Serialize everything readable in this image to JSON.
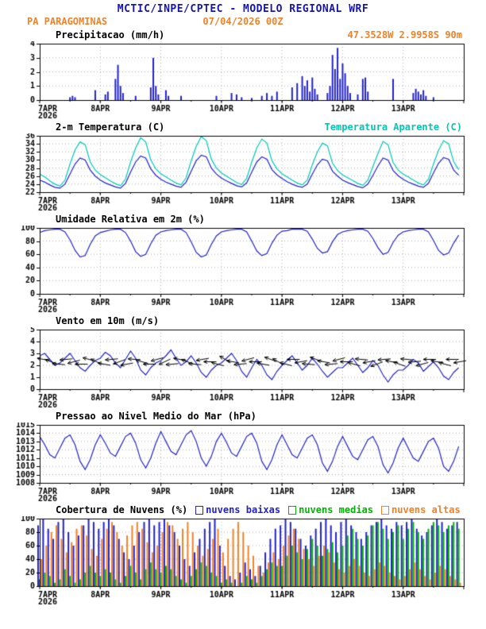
{
  "header": {
    "title": "MCTIC/INPE/CPTEC - MODELO REGIONAL WRF",
    "station": "PA PARAGOMINAS",
    "run": "07/04/2026 00Z",
    "coords": "47.3528W 2.9958S 90m"
  },
  "colors": {
    "header_blue": "#1414b4",
    "orange": "#f08228",
    "blue": "#2323c8",
    "cyan": "#00c8b4",
    "green": "#00b400",
    "grid": "#b0b0b0",
    "axis": "#000000"
  },
  "xaxis": {
    "labels": [
      "7APR",
      "8APR",
      "9APR",
      "10APR",
      "11APR",
      "12APR",
      "13APR"
    ],
    "year": "2026",
    "total_hours": 168
  },
  "chart_data": [
    {
      "id": "precip",
      "type": "bar",
      "title": "Precipitacao (mm/h)",
      "ylim": [
        0,
        4
      ],
      "yticks": [
        0,
        1,
        2,
        3,
        4
      ],
      "step_hours": 1,
      "color": "blue",
      "values": [
        0,
        0,
        0,
        0,
        0,
        0,
        0,
        0,
        0,
        0,
        0,
        0,
        0.2,
        0.3,
        0.2,
        0,
        0,
        0,
        0,
        0,
        0,
        0,
        0.7,
        0,
        0,
        0,
        0.4,
        0.6,
        0,
        0,
        1.5,
        2.5,
        1.0,
        0.5,
        0,
        0,
        0,
        0,
        0.3,
        0,
        0,
        0,
        0,
        0,
        0.9,
        3.0,
        1.0,
        0.4,
        0,
        0,
        0.7,
        0.3,
        0,
        0,
        0,
        0,
        0.3,
        0,
        0,
        0,
        0,
        0,
        0,
        0,
        0,
        0,
        0,
        0,
        0,
        0,
        0.3,
        0,
        0,
        0,
        0,
        0,
        0.5,
        0,
        0.4,
        0,
        0.2,
        0,
        0,
        0,
        0.15,
        0,
        0,
        0,
        0.3,
        0,
        0.5,
        0,
        0.3,
        0,
        0.6,
        0,
        0,
        0,
        0,
        0,
        0.9,
        0,
        1.2,
        0,
        1.7,
        1.0,
        1.4,
        0.6,
        1.6,
        0.8,
        0.4,
        0,
        0,
        0,
        0.5,
        1.0,
        3.2,
        2.2,
        3.7,
        1.5,
        2.6,
        1.9,
        1.0,
        0.5,
        0,
        0,
        0.4,
        0,
        1.5,
        1.6,
        0.6,
        0,
        0,
        0,
        0,
        0,
        0,
        0,
        0,
        0,
        1.5,
        0,
        0,
        0,
        0,
        0,
        0,
        0,
        0.5,
        0.8,
        0.6,
        0.4,
        0.7,
        0.3,
        0,
        0,
        0.2,
        0,
        0,
        0,
        0,
        0,
        0,
        0,
        0,
        0,
        0,
        0
      ]
    },
    {
      "id": "temp",
      "type": "line",
      "title": "2-m Temperatura (C)",
      "right_label": "Temperatura Aparente (C)",
      "ylim": [
        22,
        36
      ],
      "yticks": [
        22,
        24,
        26,
        28,
        30,
        32,
        34,
        36
      ],
      "step_hours": 2,
      "series": [
        {
          "name": "2-m Temperatura (C)",
          "color": "blue",
          "values": [
            25,
            24.5,
            23.8,
            23.2,
            23,
            24,
            26.5,
            29,
            30.5,
            30,
            27.5,
            26,
            25,
            24.3,
            23.8,
            23.3,
            23,
            24.2,
            27,
            29.5,
            31,
            30.5,
            27.8,
            26.2,
            25.2,
            24.5,
            24,
            23.5,
            23.2,
            24.5,
            27.2,
            29.8,
            31.2,
            30.8,
            28,
            26.5,
            25.5,
            24.8,
            24.2,
            23.6,
            23.3,
            24.3,
            27,
            29.5,
            30.8,
            30.2,
            27.6,
            26.3,
            25.4,
            24.6,
            24,
            23.5,
            23.2,
            24,
            26.5,
            28.8,
            30.2,
            29.8,
            27.2,
            26,
            25,
            24.4,
            23.9,
            23.4,
            23.1,
            24,
            26.2,
            28.5,
            30.5,
            30,
            27.4,
            26.1,
            25.2,
            24.5,
            24,
            23.5,
            23.2,
            24.2,
            26.8,
            29.2,
            30.6,
            30.2,
            27.5,
            26.2
          ]
        },
        {
          "name": "Temperatura Aparente (C)",
          "color": "cyan",
          "values": [
            26.5,
            25.8,
            24.8,
            24,
            23.5,
            25,
            29,
            32.5,
            34.5,
            33.8,
            29.5,
            27.5,
            26.4,
            25.6,
            24.8,
            24.1,
            23.6,
            25.3,
            29.5,
            33,
            35.5,
            34.5,
            30,
            27.8,
            26.6,
            25.8,
            25,
            24.3,
            23.8,
            25.6,
            29.8,
            33.4,
            35.8,
            34.8,
            30.2,
            28,
            26.8,
            26,
            25.2,
            24.4,
            23.9,
            25.4,
            29.5,
            33,
            35.2,
            34.2,
            29.8,
            27.8,
            26.6,
            25.8,
            25,
            24.3,
            23.8,
            25,
            28.8,
            32,
            34.2,
            33.5,
            29.2,
            27.4,
            26.3,
            25.6,
            24.9,
            24.2,
            23.7,
            25,
            28.4,
            31.6,
            34.6,
            33.8,
            29.4,
            27.5,
            26.5,
            25.8,
            25,
            24.3,
            23.8,
            25.2,
            29,
            32.4,
            34.8,
            34,
            29.6,
            27.6
          ]
        }
      ]
    },
    {
      "id": "rh",
      "type": "line",
      "title": "Umidade Relativa em 2m (%)",
      "ylim": [
        0,
        100
      ],
      "yticks": [
        0,
        20,
        40,
        60,
        80,
        100
      ],
      "step_hours": 2,
      "series": [
        {
          "name": "Umidade Relativa em 2m",
          "color": "blue",
          "values": [
            93,
            96,
            97,
            98,
            98,
            94,
            82,
            66,
            56,
            58,
            75,
            88,
            93,
            95,
            97,
            98,
            98,
            93,
            80,
            64,
            57,
            60,
            76,
            89,
            94,
            96,
            97,
            98,
            98,
            93,
            79,
            63,
            56,
            59,
            75,
            88,
            94,
            96,
            97,
            98,
            98,
            94,
            80,
            65,
            58,
            61,
            77,
            89,
            95,
            96,
            98,
            98,
            98,
            95,
            83,
            69,
            62,
            64,
            79,
            90,
            94,
            96,
            97,
            98,
            98,
            95,
            84,
            70,
            60,
            63,
            78,
            89,
            94,
            96,
            97,
            98,
            98,
            94,
            81,
            66,
            59,
            62,
            77,
            89
          ]
        }
      ]
    },
    {
      "id": "wind",
      "type": "wind",
      "title": "Vento em 10m (m/s)",
      "ylim": [
        0,
        5
      ],
      "yticks": [
        0,
        1,
        2,
        3,
        4,
        5
      ],
      "step_hours": 2,
      "series": [
        {
          "name": "Vento em 10m",
          "color": "blue",
          "values": [
            2.8,
            3,
            2.5,
            2,
            2.2,
            2.6,
            3,
            2.4,
            1.8,
            1.5,
            2,
            2.4,
            2.6,
            3.1,
            2.8,
            2.2,
            1.8,
            2.5,
            3.2,
            2.6,
            1.6,
            1.2,
            1.8,
            2.2,
            2.4,
            2.8,
            3.3,
            2.6,
            2,
            2.3,
            2.8,
            2.2,
            1.4,
            1,
            1.6,
            2,
            2.2,
            2.6,
            3,
            2.4,
            1.5,
            1,
            1.8,
            2.5,
            2,
            1.2,
            0.8,
            1.5,
            2,
            2.4,
            2.8,
            2.2,
            1.6,
            2,
            2.6,
            2.1,
            1.5,
            1,
            1.4,
            1.8,
            1.8,
            2.2,
            2.6,
            2,
            1.4,
            1.8,
            2.4,
            2,
            1.2,
            0.6,
            1.2,
            1.6,
            1.6,
            2,
            2.5,
            2.2,
            1.5,
            1.9,
            2.3,
            1.8,
            1.1,
            0.8,
            1.4,
            1.8
          ]
        }
      ],
      "barbs": {
        "step_hours": 3,
        "y_value": 2.3,
        "angles": [
          170,
          160,
          175,
          185,
          195,
          180,
          165,
          155,
          170,
          185,
          200,
          190,
          175,
          165,
          180,
          195,
          205,
          185,
          170,
          160,
          175,
          190,
          180,
          165,
          150,
          170,
          185,
          195,
          180,
          170,
          160,
          150,
          165,
          180,
          190,
          175,
          160,
          170,
          185,
          195,
          180,
          165,
          175,
          190,
          200,
          185,
          170,
          160,
          175,
          185,
          195,
          180,
          170,
          165,
          180,
          190
        ]
      }
    },
    {
      "id": "pres",
      "type": "line",
      "title": "Pressao ao Nivel Medio do Mar (hPa)",
      "ylim": [
        1008,
        1015
      ],
      "yticks": [
        1008,
        1009,
        1010,
        1011,
        1012,
        1013,
        1014,
        1015
      ],
      "step_hours": 2,
      "series": [
        {
          "name": "Pressao ao Nivel Medio do Mar",
          "color": "blue",
          "values": [
            1013.6,
            1012.6,
            1011.4,
            1011.0,
            1012.2,
            1013.4,
            1013.8,
            1012.6,
            1010.6,
            1009.6,
            1010.8,
            1012.6,
            1013.8,
            1012.8,
            1011.6,
            1011.2,
            1012.4,
            1013.6,
            1014.0,
            1012.8,
            1010.8,
            1009.8,
            1011.0,
            1012.8,
            1014.2,
            1013.0,
            1011.8,
            1011.4,
            1012.6,
            1013.8,
            1014.3,
            1013.0,
            1011.0,
            1010.0,
            1011.2,
            1013.0,
            1014.0,
            1012.9,
            1011.6,
            1011.2,
            1012.4,
            1013.6,
            1014.0,
            1012.8,
            1010.6,
            1009.6,
            1010.8,
            1012.6,
            1013.8,
            1012.6,
            1011.4,
            1011.0,
            1012.2,
            1013.4,
            1013.8,
            1012.6,
            1010.4,
            1009.4,
            1010.6,
            1012.4,
            1013.6,
            1012.4,
            1011.2,
            1010.8,
            1012.0,
            1013.2,
            1013.6,
            1012.4,
            1010.2,
            1009.2,
            1010.4,
            1012.2,
            1013.4,
            1012.2,
            1011.0,
            1010.6,
            1011.8,
            1013.0,
            1013.4,
            1012.2,
            1010.0,
            1009.4,
            1010.6,
            1012.4
          ]
        }
      ]
    },
    {
      "id": "clouds",
      "type": "cloudbar",
      "title": "Cobertura de Nuvens (%)",
      "ylim": [
        0,
        100
      ],
      "yticks": [
        0,
        20,
        40,
        60,
        80,
        100
      ],
      "step_hours": 2,
      "series": [
        {
          "name": "nuvens baixas",
          "color": "blue",
          "values": [
            90,
            100,
            85,
            70,
            95,
            100,
            80,
            60,
            75,
            90,
            100,
            95,
            85,
            95,
            100,
            90,
            70,
            50,
            40,
            60,
            80,
            95,
            100,
            90,
            95,
            100,
            90,
            80,
            60,
            40,
            30,
            50,
            70,
            85,
            95,
            100,
            60,
            30,
            15,
            10,
            20,
            35,
            25,
            15,
            30,
            50,
            70,
            85,
            90,
            100,
            95,
            85,
            70,
            60,
            75,
            85,
            95,
            100,
            90,
            80,
            95,
            100,
            90,
            80,
            70,
            80,
            90,
            95,
            100,
            90,
            85,
            95,
            90,
            95,
            100,
            85,
            75,
            80,
            90,
            100,
            95,
            85,
            90,
            95
          ]
        },
        {
          "name": "nuvens medias",
          "color": "green",
          "values": [
            10,
            20,
            15,
            5,
            10,
            25,
            15,
            5,
            10,
            20,
            30,
            20,
            15,
            25,
            20,
            10,
            5,
            15,
            30,
            20,
            10,
            25,
            35,
            25,
            20,
            30,
            25,
            15,
            10,
            5,
            15,
            25,
            35,
            30,
            20,
            15,
            5,
            10,
            5,
            0,
            5,
            15,
            10,
            5,
            15,
            25,
            35,
            30,
            30,
            45,
            60,
            50,
            40,
            55,
            70,
            60,
            45,
            55,
            65,
            50,
            60,
            75,
            85,
            70,
            60,
            75,
            90,
            95,
            85,
            70,
            80,
            90,
            70,
            85,
            95,
            80,
            70,
            85,
            95,
            90,
            80,
            90,
            95,
            85
          ]
        },
        {
          "name": "nuvens altas",
          "color": "orange",
          "values": [
            40,
            60,
            80,
            90,
            70,
            50,
            65,
            85,
            90,
            75,
            55,
            45,
            70,
            85,
            95,
            80,
            60,
            75,
            90,
            95,
            85,
            65,
            50,
            60,
            80,
            95,
            90,
            70,
            85,
            95,
            80,
            60,
            45,
            55,
            70,
            85,
            50,
            70,
            85,
            95,
            80,
            60,
            45,
            30,
            20,
            35,
            50,
            40,
            60,
            75,
            85,
            70,
            55,
            40,
            30,
            45,
            60,
            50,
            35,
            25,
            20,
            30,
            40,
            30,
            20,
            15,
            25,
            35,
            30,
            20,
            15,
            10,
            15,
            25,
            35,
            25,
            15,
            10,
            20,
            30,
            25,
            15,
            10,
            5
          ]
        }
      ]
    }
  ]
}
